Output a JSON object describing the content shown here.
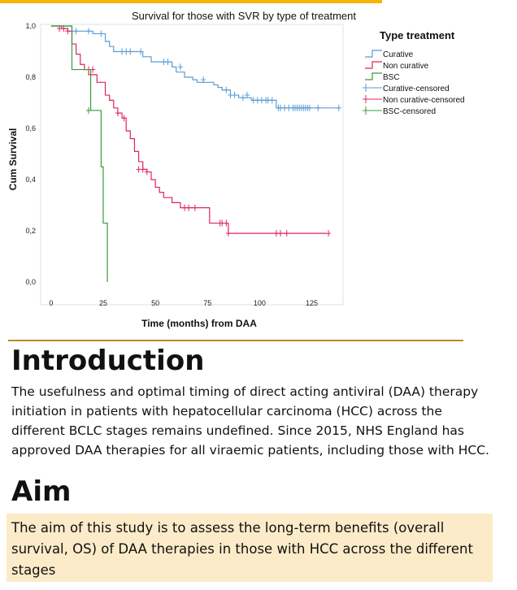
{
  "chart_data": {
    "type": "line",
    "title": "Survival for those with SVR by type of treatment",
    "xlabel": "Time (months) from DAA",
    "ylabel": "Cum Survival",
    "xlim": [
      -5,
      140
    ],
    "ylim": [
      0,
      1.0
    ],
    "xticks": [
      0,
      25,
      50,
      75,
      100,
      125
    ],
    "yticks": [
      0.0,
      0.2,
      0.4,
      0.6,
      0.8,
      1.0
    ],
    "ytick_labels": [
      "0,0",
      "0,2",
      "0,4",
      "0,6",
      "0,8",
      "1,0"
    ],
    "legend_title": "Type treatment",
    "legend_position": "right",
    "legend": [
      "Curative",
      "Non curative",
      "BSC",
      "Curative-censored",
      "Non curative-censored",
      "BSC-censored"
    ],
    "series": [
      {
        "name": "Curative",
        "color": "#5b9bd5",
        "steps": [
          [
            0,
            1.0
          ],
          [
            10,
            0.98
          ],
          [
            20,
            0.97
          ],
          [
            26,
            0.94
          ],
          [
            28,
            0.92
          ],
          [
            30,
            0.9
          ],
          [
            44,
            0.88
          ],
          [
            48,
            0.86
          ],
          [
            58,
            0.84
          ],
          [
            60,
            0.82
          ],
          [
            64,
            0.8
          ],
          [
            68,
            0.79
          ],
          [
            70,
            0.78
          ],
          [
            78,
            0.77
          ],
          [
            80,
            0.76
          ],
          [
            82,
            0.75
          ],
          [
            86,
            0.73
          ],
          [
            90,
            0.72
          ],
          [
            96,
            0.71
          ],
          [
            108,
            0.68
          ],
          [
            138,
            0.68
          ]
        ],
        "censored": [
          [
            12,
            0.98
          ],
          [
            18,
            0.98
          ],
          [
            24,
            0.97
          ],
          [
            34,
            0.9
          ],
          [
            36,
            0.9
          ],
          [
            38,
            0.9
          ],
          [
            43,
            0.9
          ],
          [
            54,
            0.86
          ],
          [
            56,
            0.86
          ],
          [
            62,
            0.84
          ],
          [
            73,
            0.79
          ],
          [
            84,
            0.75
          ],
          [
            86,
            0.73
          ],
          [
            88,
            0.73
          ],
          [
            92,
            0.72
          ],
          [
            94,
            0.73
          ],
          [
            97,
            0.71
          ],
          [
            99,
            0.71
          ],
          [
            101,
            0.71
          ],
          [
            103,
            0.71
          ],
          [
            104,
            0.71
          ],
          [
            106,
            0.71
          ],
          [
            109,
            0.68
          ],
          [
            110,
            0.68
          ],
          [
            112,
            0.68
          ],
          [
            114,
            0.68
          ],
          [
            116,
            0.68
          ],
          [
            117,
            0.68
          ],
          [
            118,
            0.68
          ],
          [
            119,
            0.68
          ],
          [
            120,
            0.68
          ],
          [
            121,
            0.68
          ],
          [
            122,
            0.68
          ],
          [
            123,
            0.68
          ],
          [
            124,
            0.68
          ],
          [
            128,
            0.68
          ],
          [
            138,
            0.68
          ]
        ]
      },
      {
        "name": "Non curative",
        "color": "#e0245e",
        "steps": [
          [
            0,
            1.0
          ],
          [
            5,
            0.99
          ],
          [
            8,
            0.98
          ],
          [
            10,
            0.93
          ],
          [
            12,
            0.89
          ],
          [
            14,
            0.85
          ],
          [
            16,
            0.83
          ],
          [
            18,
            0.81
          ],
          [
            22,
            0.78
          ],
          [
            26,
            0.73
          ],
          [
            28,
            0.71
          ],
          [
            30,
            0.68
          ],
          [
            32,
            0.66
          ],
          [
            34,
            0.64
          ],
          [
            36,
            0.59
          ],
          [
            38,
            0.56
          ],
          [
            40,
            0.51
          ],
          [
            42,
            0.47
          ],
          [
            44,
            0.44
          ],
          [
            46,
            0.43
          ],
          [
            48,
            0.4
          ],
          [
            50,
            0.37
          ],
          [
            52,
            0.35
          ],
          [
            54,
            0.33
          ],
          [
            58,
            0.31
          ],
          [
            62,
            0.29
          ],
          [
            76,
            0.23
          ],
          [
            85,
            0.19
          ],
          [
            132,
            0.19
          ]
        ],
        "censored": [
          [
            4,
            0.99
          ],
          [
            6,
            0.99
          ],
          [
            8,
            0.98
          ],
          [
            18,
            0.83
          ],
          [
            20,
            0.83
          ],
          [
            32,
            0.66
          ],
          [
            35,
            0.64
          ],
          [
            42,
            0.44
          ],
          [
            44,
            0.44
          ],
          [
            46,
            0.43
          ],
          [
            64,
            0.29
          ],
          [
            66,
            0.29
          ],
          [
            69,
            0.29
          ],
          [
            81,
            0.23
          ],
          [
            82,
            0.23
          ],
          [
            84,
            0.23
          ],
          [
            85,
            0.19
          ],
          [
            108,
            0.19
          ],
          [
            110,
            0.19
          ],
          [
            113,
            0.19
          ],
          [
            133,
            0.19
          ]
        ]
      },
      {
        "name": "BSC",
        "color": "#3a9a3a",
        "steps": [
          [
            0,
            1.0
          ],
          [
            10,
            0.83
          ],
          [
            19,
            0.67
          ],
          [
            24,
            0.45
          ],
          [
            25,
            0.23
          ],
          [
            27,
            0.0
          ]
        ],
        "censored": [
          [
            18,
            0.67
          ]
        ]
      }
    ]
  },
  "sections": {
    "introduction": {
      "heading": "Introduction",
      "text": "The usefulness and optimal timing of direct acting antiviral (DAA) therapy initiation in patients with hepatocellular carcinoma (HCC) across the different BCLC stages remains undefined. Since 2015, NHS England has approved DAA therapies for all viraemic patients, including those with HCC."
    },
    "aim": {
      "heading": "Aim",
      "text": "The aim of this study is to assess the long-term benefits (overall survival, OS) of DAA therapies in those with HCC across the different stages"
    }
  },
  "colors": {
    "accent_rule": "#f4b400",
    "divider": "#b58a2b",
    "aim_background": "#fcebc8"
  }
}
